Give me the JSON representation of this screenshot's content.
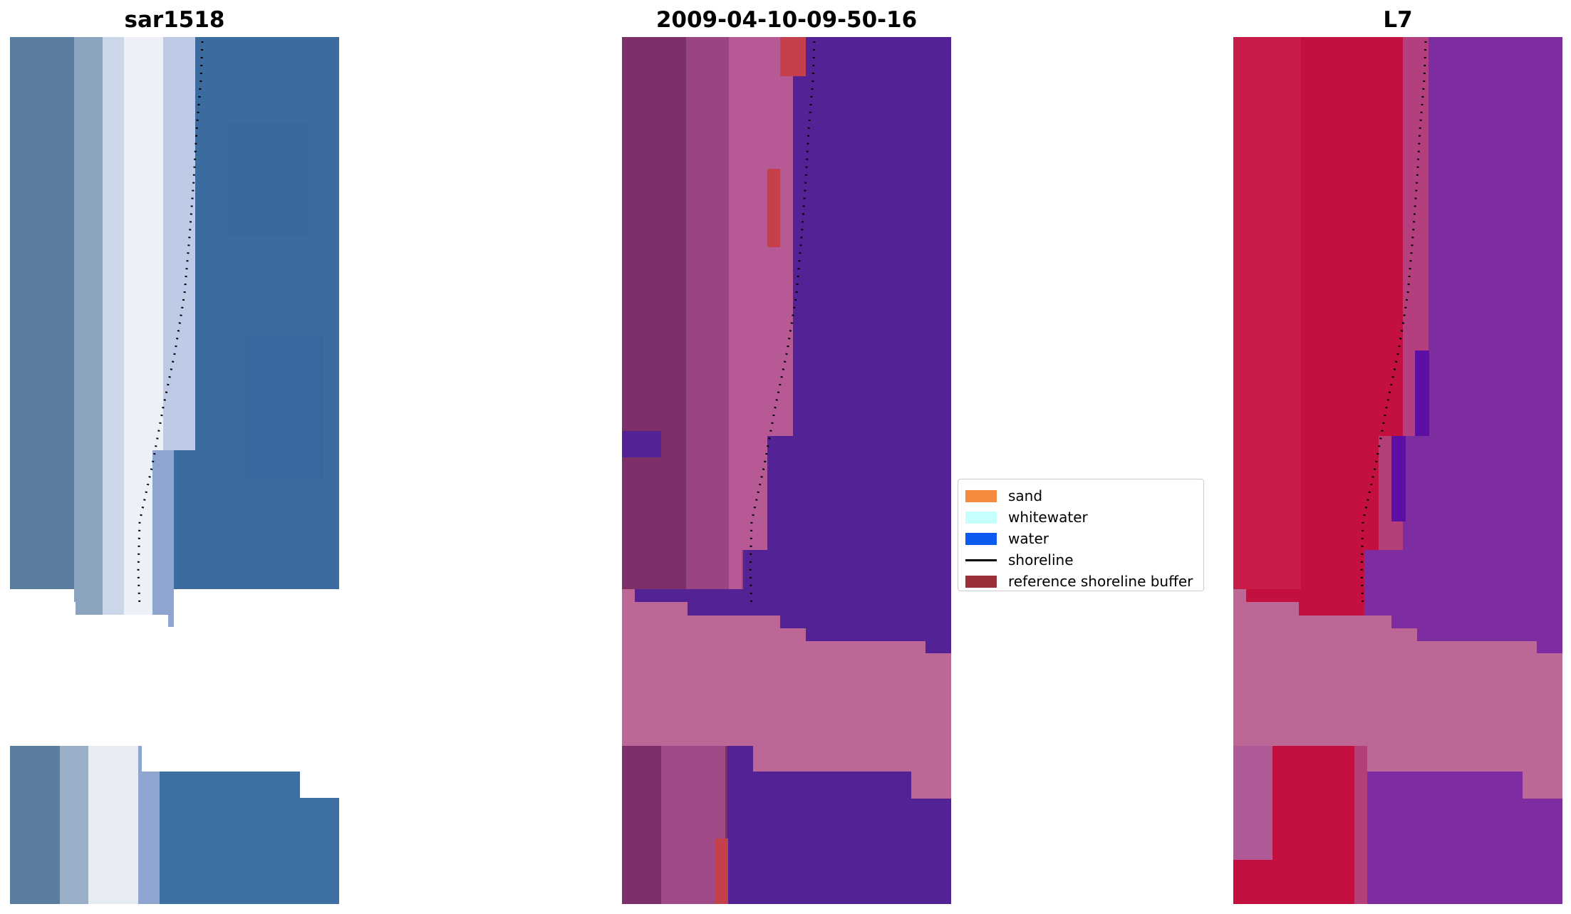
{
  "panels": [
    {
      "title": "sar1518",
      "kind": "rgb"
    },
    {
      "title": "2009-04-10-09-50-16",
      "kind": "classified"
    },
    {
      "title": "L7",
      "kind": "false-color"
    }
  ],
  "legend": {
    "items": [
      {
        "label": "sand",
        "color": "#f58b3c",
        "type": "patch"
      },
      {
        "label": "whitewater",
        "color": "#c6fffc",
        "type": "patch"
      },
      {
        "label": "water",
        "color": "#0b5bf0",
        "type": "patch"
      },
      {
        "label": "shoreline",
        "color": "#000000",
        "type": "line"
      },
      {
        "label": "reference shoreline buffer",
        "color": "#9a2f3a",
        "type": "patch"
      }
    ]
  },
  "colors": {
    "rgb_water": "#3d6ea0",
    "rgb_whitewater": "#e8ecf5",
    "class_sand": "#7d2f6a",
    "class_water": "#532396",
    "class_nodata": "#bd6797",
    "l7_sand": "#c4103e",
    "l7_water": "#7e2da0",
    "buffer": "#c4404a"
  }
}
